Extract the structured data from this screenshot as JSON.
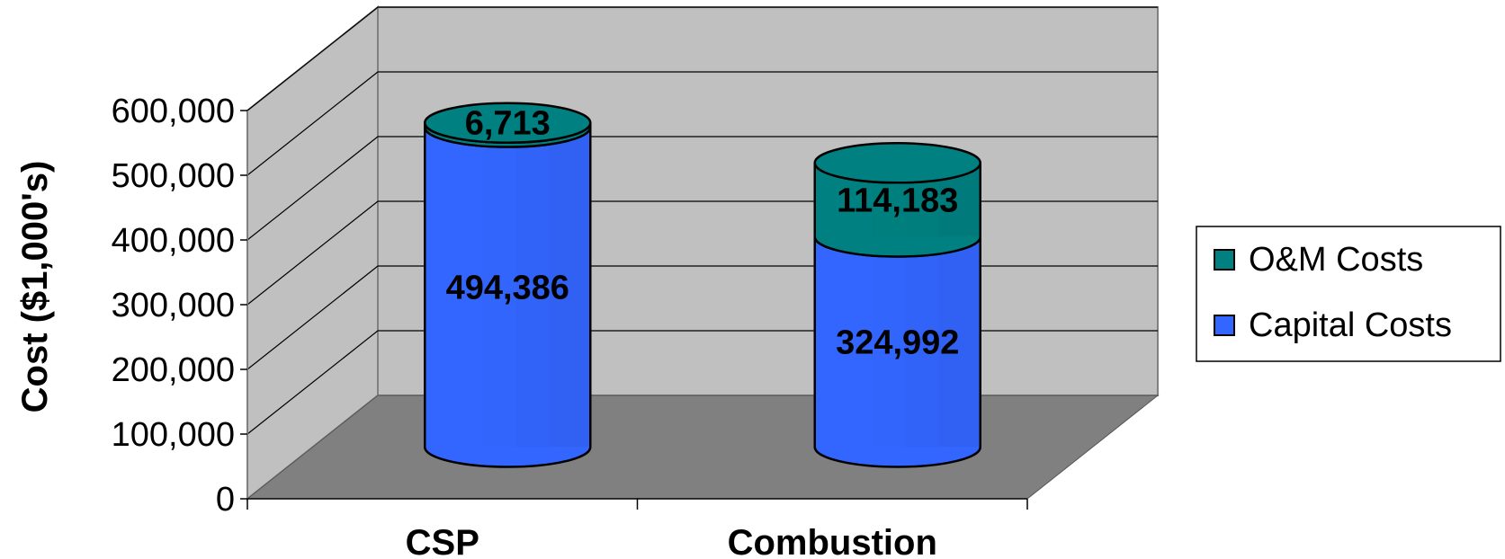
{
  "chart_data": {
    "type": "bar",
    "stacked": true,
    "style": "3d-cylinder",
    "categories": [
      "CSP",
      "Combustion"
    ],
    "series": [
      {
        "name": "Capital Costs",
        "values": [
          494386,
          324992
        ],
        "color": "#3366ff"
      },
      {
        "name": "O&M Costs",
        "values": [
          6713,
          114183
        ],
        "color": "#008080"
      }
    ],
    "data_labels": [
      [
        "494,386",
        "324,992"
      ],
      [
        "6,713",
        "114,183"
      ]
    ],
    "ylabel": "Cost ($1,000's)",
    "xlabel": "",
    "title": "",
    "ylim": [
      0,
      600000
    ],
    "yticks": [
      0,
      100000,
      200000,
      300000,
      400000,
      500000,
      600000
    ],
    "ytick_labels": [
      "0",
      "100,000",
      "200,000",
      "300,000",
      "400,000",
      "500,000",
      "600,000"
    ],
    "grid": true,
    "legend": {
      "position": "right",
      "items": [
        "O&M Costs",
        "Capital Costs"
      ]
    },
    "colors": {
      "back_wall": "#c0c0c0",
      "side_wall": "#c0c0c0",
      "floor": "#808080",
      "capital": "#3366ff",
      "om": "#008080"
    }
  }
}
